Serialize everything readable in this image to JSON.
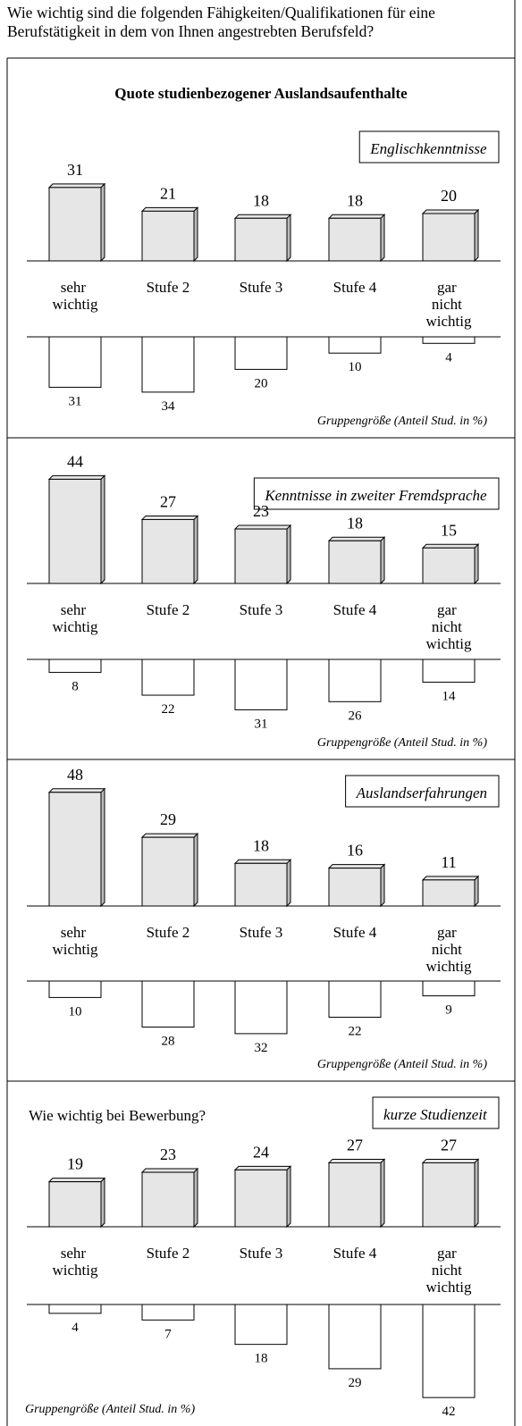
{
  "header": "Wie wichtig sind die folgenden Fähigkeiten/Qualifikationen für eine Berufstätigkeit in dem von Ihnen angestrebten Berufsfeld?",
  "chart_data": [
    {
      "type": "bar",
      "title": "Quote studienbezogener Auslandsaufenthalte",
      "label": "Englischkenntnisse",
      "categories": [
        "sehr wichtig",
        "Stufe 2",
        "Stufe 3",
        "Stufe 4",
        "gar nicht wichtig"
      ],
      "values": [
        31,
        21,
        18,
        18,
        20
      ],
      "group_values": [
        31,
        34,
        20,
        10,
        4
      ],
      "group_label": "Gruppengröße (Anteil Stud. in %)"
    },
    {
      "type": "bar",
      "label": "Kenntnisse in zweiter Fremdsprache",
      "categories": [
        "sehr wichtig",
        "Stufe 2",
        "Stufe 3",
        "Stufe 4",
        "gar nicht wichtig"
      ],
      "values": [
        44,
        27,
        23,
        18,
        15
      ],
      "group_values": [
        8,
        22,
        31,
        26,
        14
      ],
      "group_label": "Gruppengröße (Anteil Stud. in %)"
    },
    {
      "type": "bar",
      "label": "Auslandserfahrungen",
      "categories": [
        "sehr wichtig",
        "Stufe 2",
        "Stufe 3",
        "Stufe 4",
        "gar nicht wichtig"
      ],
      "values": [
        48,
        29,
        18,
        16,
        11
      ],
      "group_values": [
        10,
        28,
        32,
        22,
        9
      ],
      "group_label": "Gruppengröße (Anteil Stud. in %)"
    },
    {
      "type": "bar",
      "subtitle": "Wie wichtig bei Bewerbung?",
      "label": "kurze Studienzeit",
      "categories": [
        "sehr wichtig",
        "Stufe 2",
        "Stufe 3",
        "Stufe 4",
        "gar nicht wichtig"
      ],
      "values": [
        19,
        23,
        24,
        27,
        27
      ],
      "group_values": [
        4,
        7,
        18,
        29,
        42
      ],
      "group_label": "Gruppengröße (Anteil Stud. in %)"
    }
  ]
}
